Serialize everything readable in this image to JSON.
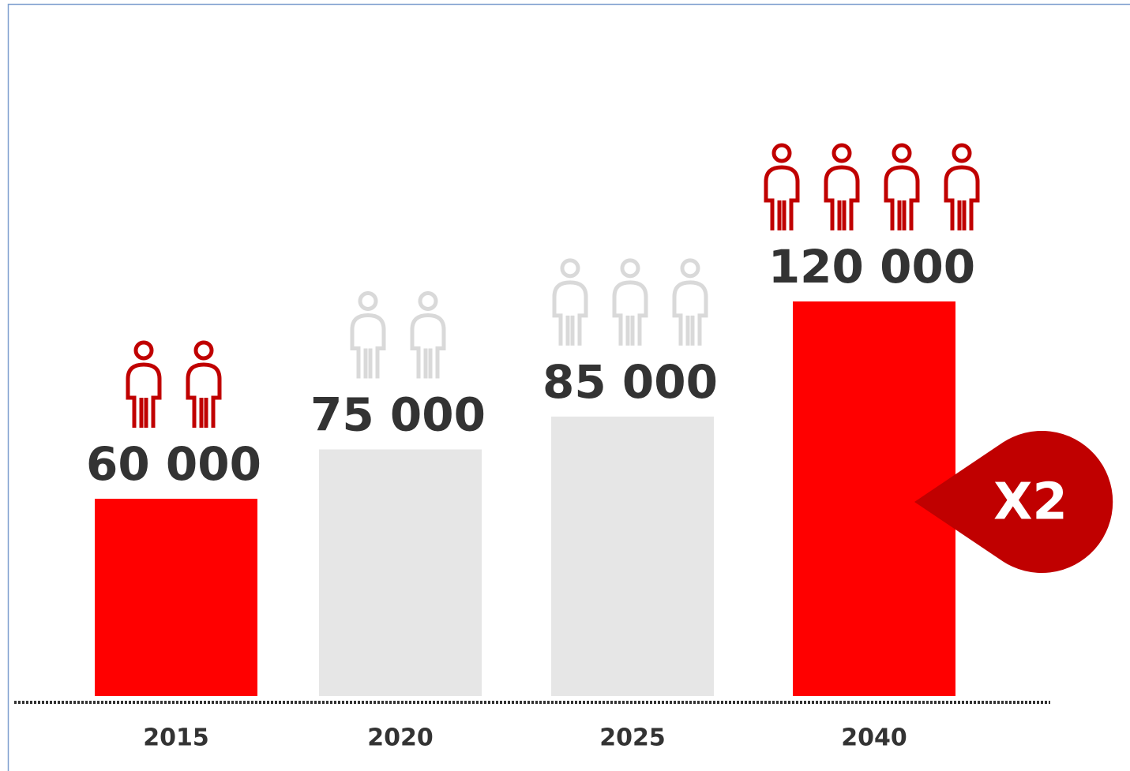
{
  "chart_data": {
    "type": "bar",
    "categories": [
      "2015",
      "2020",
      "2025",
      "2040"
    ],
    "values": [
      60000,
      75000,
      85000,
      120000
    ],
    "value_labels": [
      "60 000",
      "75 000",
      "85 000",
      "120 000"
    ],
    "colors": [
      "#ff0000",
      "#e6e6e6",
      "#e6e6e6",
      "#ff0000"
    ],
    "icon_colors": [
      "#c00000",
      "#d9d9d9",
      "#d9d9d9",
      "#c00000"
    ],
    "annotation": "X2",
    "annotation_color": "#c00000"
  }
}
